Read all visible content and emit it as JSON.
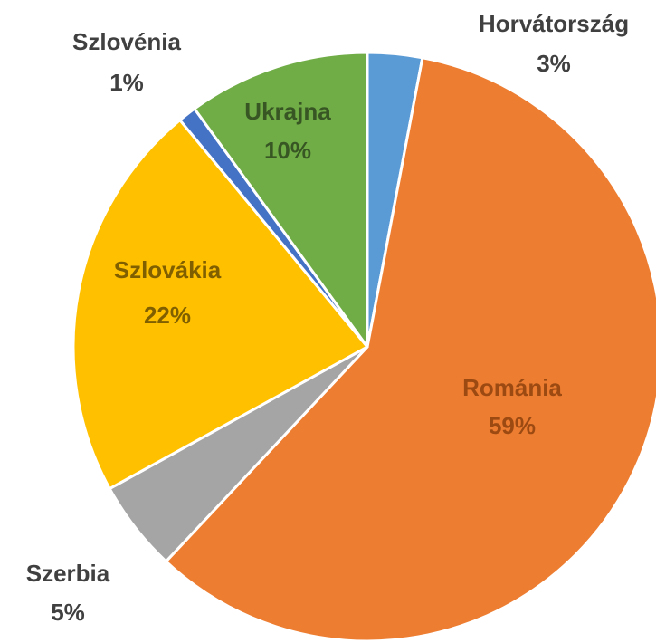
{
  "chart_data": {
    "type": "pie",
    "categories": [
      "Horvátország",
      "Románia",
      "Szerbia",
      "Szlovákia",
      "Szlovénia",
      "Ukrajna"
    ],
    "values": [
      3,
      59,
      5,
      22,
      1,
      10
    ],
    "value_labels": [
      "3%",
      "59%",
      "5%",
      "22%",
      "1%",
      "10%"
    ],
    "colors": [
      "#5b9bd5",
      "#ed7d31",
      "#a5a5a5",
      "#ffc000",
      "#4472c4",
      "#70ad47"
    ],
    "label_colors": [
      "#404040",
      "#9c4a12",
      "#404040",
      "#7f5f00",
      "#404040",
      "#375623"
    ]
  }
}
